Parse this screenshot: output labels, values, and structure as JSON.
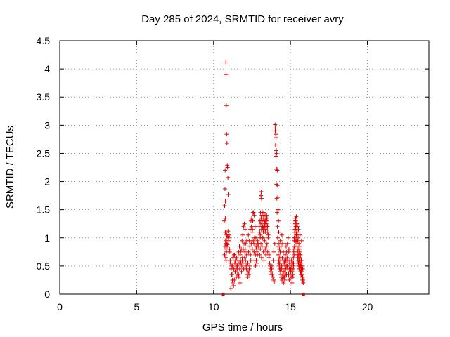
{
  "chart_data": {
    "type": "scatter",
    "title": "Day 285 of 2024, SRMTID for receiver avry",
    "xlabel": "GPS time / hours",
    "ylabel": "SRMTID / TECUs",
    "xlim": [
      0,
      24
    ],
    "ylim": [
      0,
      4.5
    ],
    "x_ticks": [
      0,
      5,
      10,
      15,
      20
    ],
    "x_tick_labels": [
      "0",
      "5",
      "10",
      "15",
      "20"
    ],
    "y_ticks": [
      0,
      0.5,
      1,
      1.5,
      2,
      2.5,
      3,
      3.5,
      4,
      4.5
    ],
    "y_tick_labels": [
      "0",
      "0.5",
      "1",
      "1.5",
      "2",
      "2.5",
      "3",
      "3.5",
      "4",
      "4.5"
    ],
    "grid": true,
    "marker": "plus",
    "series_color": "#e00000",
    "markers_on_axis": [
      10.63,
      15.85
    ],
    "series": [
      {
        "name": "SRMTID",
        "x": [
          10.7,
          10.72,
          10.74,
          10.76,
          10.78,
          10.8,
          10.81,
          10.83,
          10.85,
          10.87,
          10.89,
          10.91,
          10.93,
          10.95,
          10.97,
          10.99,
          11.01,
          11.03,
          10.72,
          10.74,
          10.76,
          10.78,
          10.8,
          10.82,
          10.84,
          10.86,
          10.75,
          10.77,
          10.79,
          10.81,
          10.83,
          10.85,
          10.88,
          10.9,
          10.92,
          10.94,
          11.05,
          11.1,
          11.15,
          11.2,
          11.25,
          11.3,
          11.35,
          11.4,
          11.45,
          11.5,
          11.55,
          11.6,
          11.65,
          11.7,
          11.75,
          11.8,
          11.85,
          11.9,
          11.95,
          12.0,
          12.05,
          12.1,
          12.15,
          12.2,
          12.25,
          12.3,
          12.35,
          12.4,
          12.45,
          12.5,
          12.55,
          12.6,
          12.65,
          12.7,
          12.75,
          12.8,
          12.85,
          12.9,
          11.08,
          11.13,
          11.18,
          11.23,
          11.28,
          11.33,
          11.38,
          11.43,
          11.48,
          11.53,
          11.58,
          11.63,
          11.68,
          11.73,
          11.78,
          11.83,
          11.88,
          11.93,
          11.98,
          12.03,
          12.08,
          12.13,
          12.18,
          12.23,
          12.28,
          12.33,
          12.38,
          12.43,
          12.48,
          12.53,
          12.58,
          12.63,
          12.68,
          12.73,
          12.78,
          12.83,
          12.88,
          11.12,
          11.22,
          11.32,
          11.42,
          11.52,
          11.62,
          11.72,
          11.82,
          11.92,
          12.02,
          12.12,
          12.22,
          12.32,
          12.42,
          12.52,
          12.62,
          12.72,
          12.82,
          11.16,
          11.26,
          11.36,
          11.46,
          11.56,
          11.66,
          11.76,
          11.86,
          11.96,
          12.06,
          12.16,
          12.26,
          12.36,
          12.46,
          12.56,
          12.66,
          12.76,
          12.86,
          12.95,
          13.0,
          13.02,
          13.05,
          13.08,
          13.1,
          13.12,
          13.15,
          13.18,
          13.2,
          13.22,
          13.25,
          13.28,
          13.3,
          13.32,
          13.35,
          13.38,
          13.4,
          13.42,
          13.45,
          13.48,
          13.5,
          13.52,
          13.55,
          12.97,
          13.03,
          13.07,
          13.11,
          13.16,
          13.21,
          13.26,
          13.31,
          13.36,
          13.41,
          13.46,
          13.51,
          13.56,
          13.04,
          13.09,
          13.14,
          13.19,
          13.24,
          13.29,
          13.34,
          13.39,
          13.44,
          13.49,
          13.0,
          13.04,
          13.08,
          13.12,
          13.16,
          13.2,
          13.24,
          13.28,
          13.32,
          13.36,
          13.4,
          13.44,
          13.48,
          13.52,
          13.6,
          13.65,
          13.7,
          13.75,
          13.8,
          13.85,
          13.9,
          13.95,
          13.62,
          13.68,
          13.72,
          13.78,
          13.82,
          13.88,
          13.92,
          13.98,
          14.0,
          14.02,
          14.04,
          14.06,
          14.08,
          14.1,
          14.12,
          14.14,
          14.16,
          14.18,
          14.2,
          14.22,
          14.24,
          14.26,
          14.28,
          14.3,
          14.01,
          14.03,
          14.05,
          14.07,
          14.09,
          14.11,
          14.13,
          14.15,
          14.17,
          14.19,
          14.21,
          14.23,
          14.25,
          14.27,
          14.29,
          14.3,
          14.35,
          14.4,
          14.45,
          14.5,
          14.55,
          14.6,
          14.65,
          14.7,
          14.75,
          14.8,
          14.85,
          14.9,
          14.95,
          15.0,
          15.05,
          15.1,
          15.15,
          15.2,
          14.32,
          14.37,
          14.42,
          14.47,
          14.52,
          14.57,
          14.62,
          14.67,
          14.72,
          14.77,
          14.82,
          14.87,
          14.92,
          14.97,
          15.02,
          15.07,
          15.12,
          15.17,
          14.33,
          14.38,
          14.43,
          14.48,
          14.53,
          14.58,
          14.63,
          14.68,
          14.73,
          14.78,
          14.83,
          14.88,
          14.93,
          14.98,
          15.03,
          15.08,
          15.13,
          15.18,
          14.34,
          14.39,
          14.44,
          14.49,
          14.54,
          14.59,
          14.64,
          14.69,
          14.74,
          14.79,
          14.84,
          14.89,
          14.94,
          14.99,
          15.04,
          15.09,
          15.14,
          15.19,
          15.2,
          15.23,
          15.26,
          15.29,
          15.32,
          15.35,
          15.38,
          15.41,
          15.44,
          15.47,
          15.5,
          15.53,
          15.56,
          15.59,
          15.62,
          15.65,
          15.68,
          15.71,
          15.74,
          15.77,
          15.8,
          15.83,
          15.21,
          15.24,
          15.27,
          15.3,
          15.33,
          15.36,
          15.39,
          15.42,
          15.45,
          15.48,
          15.51,
          15.54,
          15.57,
          15.6,
          15.63,
          15.66,
          15.69,
          15.72,
          15.75,
          15.78,
          15.81,
          15.22,
          15.25,
          15.28,
          15.31,
          15.34,
          15.37,
          15.4,
          15.43,
          15.46,
          15.49,
          15.52,
          15.55,
          15.58,
          15.61,
          15.64,
          15.67,
          15.7,
          15.73,
          15.76,
          15.79,
          15.82,
          15.3,
          15.35,
          15.4,
          15.45,
          15.5,
          15.55,
          15.6,
          15.65,
          15.7,
          15.75,
          15.8,
          15.32,
          15.42,
          15.52,
          15.62,
          15.72
        ],
        "y": [
          1.3,
          1.57,
          1.87,
          1.1,
          0.9,
          4.12,
          3.9,
          3.35,
          2.84,
          2.68,
          2.29,
          2.25,
          2.07,
          1.77,
          1.0,
          0.95,
          1.05,
          0.8,
          0.7,
          0.85,
          1.35,
          0.95,
          1.1,
          0.6,
          0.75,
          0.9,
          2.2,
          1.65,
          0.65,
          0.8,
          0.98,
          1.05,
          0.85,
          0.88,
          1.03,
          1.12,
          0.75,
          0.55,
          0.45,
          0.35,
          0.2,
          0.15,
          0.25,
          0.4,
          0.55,
          0.65,
          0.5,
          0.35,
          0.3,
          0.45,
          0.6,
          0.8,
          0.95,
          1.05,
          1.2,
          1.25,
          1.15,
          0.9,
          0.7,
          0.55,
          0.4,
          0.35,
          0.5,
          0.7,
          0.9,
          1.1,
          1.3,
          1.45,
          1.4,
          1.2,
          1.0,
          0.8,
          0.7,
          0.85,
          0.6,
          0.45,
          0.35,
          0.5,
          0.65,
          0.7,
          0.55,
          0.4,
          0.3,
          0.45,
          0.6,
          0.75,
          0.85,
          0.7,
          0.55,
          0.5,
          0.65,
          0.8,
          0.9,
          0.75,
          0.6,
          0.45,
          0.35,
          0.55,
          0.75,
          0.95,
          1.15,
          1.3,
          1.35,
          1.15,
          0.95,
          0.75,
          0.6,
          0.5,
          0.6,
          0.75,
          0.9,
          0.1,
          0.25,
          0.45,
          0.6,
          0.5,
          0.35,
          0.2,
          0.4,
          0.55,
          0.65,
          0.5,
          0.3,
          0.45,
          0.6,
          0.8,
          0.9,
          0.7,
          0.55,
          0.5,
          0.65,
          0.7,
          0.45,
          0.35,
          0.55,
          0.75,
          0.6,
          0.45,
          0.8,
          0.95,
          1.05,
          0.85,
          1.2,
          1.45,
          1.0,
          0.85,
          0.95,
          0.9,
          1.1,
          1.3,
          1.45,
          1.75,
          1.82,
          1.7,
          1.4,
          1.2,
          1.0,
          1.15,
          1.35,
          1.45,
          1.3,
          1.2,
          1.4,
          1.3,
          1.15,
          1.25,
          1.4,
          1.35,
          1.2,
          1.1,
          1.0,
          1.2,
          1.0,
          1.25,
          1.15,
          1.3,
          1.45,
          1.2,
          1.3,
          1.1,
          1.25,
          1.35,
          1.2,
          1.05,
          1.05,
          1.35,
          1.4,
          1.2,
          1.1,
          1.3,
          1.25,
          1.15,
          1.3,
          1.2,
          0.7,
          0.8,
          0.9,
          0.65,
          0.85,
          1.0,
          0.75,
          0.6,
          0.95,
          0.8,
          0.7,
          0.85,
          0.9,
          0.75,
          0.65,
          0.55,
          0.45,
          0.35,
          0.5,
          0.3,
          0.25,
          0.22,
          0.7,
          0.5,
          0.4,
          0.45,
          0.35,
          0.6,
          0.75,
          0.9,
          3.01,
          2.95,
          2.84,
          2.78,
          2.55,
          2.5,
          2.22,
          2.2,
          1.93,
          1.72,
          1.5,
          1.3,
          1.1,
          0.9,
          0.8,
          0.65,
          2.9,
          2.65,
          2.45,
          2.22,
          1.95,
          1.7,
          1.45,
          1.2,
          1.0,
          0.85,
          0.7,
          0.6,
          0.55,
          0.5,
          0.45,
          0.55,
          0.4,
          0.3,
          0.25,
          0.35,
          0.2,
          0.3,
          0.45,
          0.6,
          0.75,
          0.9,
          1.0,
          0.8,
          0.6,
          0.4,
          0.3,
          0.2,
          0.35,
          0.5,
          0.45,
          0.35,
          0.5,
          0.65,
          0.4,
          0.3,
          0.55,
          0.7,
          0.85,
          0.6,
          0.45,
          0.35,
          0.25,
          0.3,
          0.45,
          0.6,
          0.4,
          0.3,
          0.75,
          0.6,
          0.45,
          0.3,
          0.55,
          0.4,
          0.25,
          0.35,
          0.5,
          0.65,
          0.5,
          0.35,
          0.45,
          0.55,
          0.4,
          0.5,
          0.35,
          0.45,
          0.95,
          0.85,
          1.05,
          0.9,
          0.75,
          0.6,
          0.5,
          0.45,
          0.35,
          0.5,
          0.6,
          0.75,
          0.55,
          0.4,
          0.3,
          0.45,
          0.55,
          0.65,
          0.55,
          0.7,
          0.85,
          1.0,
          1.15,
          1.3,
          1.38,
          1.25,
          1.1,
          0.95,
          0.8,
          0.7,
          0.6,
          0.5,
          0.45,
          0.4,
          0.35,
          0.5,
          0.6,
          0.45,
          0.3,
          0.2,
          0.75,
          0.95,
          1.1,
          1.25,
          1.35,
          1.2,
          1.05,
          0.9,
          0.75,
          0.65,
          0.55,
          0.5,
          0.45,
          0.55,
          0.65,
          0.5,
          0.4,
          0.35,
          0.3,
          0.25,
          0.22,
          0.8,
          1.0,
          1.15,
          1.3,
          1.2,
          1.05,
          0.95,
          0.85,
          0.7,
          0.6,
          0.55,
          0.65,
          0.75,
          0.85,
          0.7,
          0.55,
          0.45,
          0.4,
          0.35,
          0.3,
          0.25,
          0.85,
          0.95,
          1.1,
          1.2,
          1.0,
          0.9,
          0.8,
          0.7,
          0.6,
          0.5,
          0.45,
          1.35,
          1.25,
          1.15,
          1.05,
          0.95
        ]
      }
    ]
  }
}
